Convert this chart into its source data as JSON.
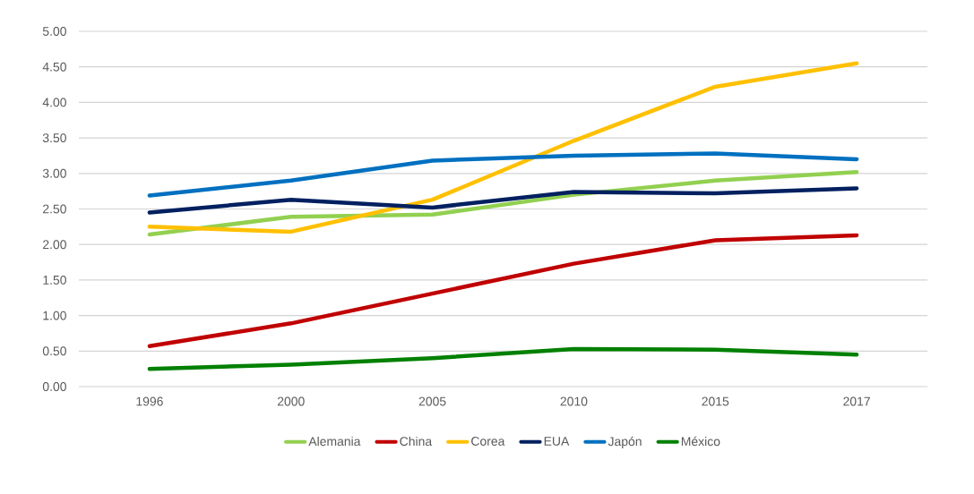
{
  "chart_data": {
    "type": "line",
    "categories": [
      "1996",
      "2000",
      "2005",
      "2010",
      "2015",
      "2017"
    ],
    "series": [
      {
        "name": "Alemania",
        "color": "#92d050",
        "values": [
          2.14,
          2.39,
          2.42,
          2.7,
          2.9,
          3.02
        ]
      },
      {
        "name": "China",
        "color": "#c00000",
        "values": [
          0.57,
          0.89,
          1.31,
          1.73,
          2.06,
          2.13
        ]
      },
      {
        "name": "Corea",
        "color": "#ffc000",
        "values": [
          2.25,
          2.18,
          2.63,
          3.46,
          4.22,
          4.55
        ]
      },
      {
        "name": "EUA",
        "color": "#002060",
        "values": [
          2.45,
          2.63,
          2.52,
          2.74,
          2.72,
          2.79
        ]
      },
      {
        "name": "Japón",
        "color": "#0070c0",
        "values": [
          2.69,
          2.9,
          3.18,
          3.25,
          3.28,
          3.2
        ]
      },
      {
        "name": "México",
        "color": "#008000",
        "values": [
          0.25,
          0.31,
          0.4,
          0.53,
          0.52,
          0.45
        ]
      }
    ],
    "ylim": [
      0,
      5
    ],
    "yticks": [
      {
        "value": 0,
        "label": "0.00"
      },
      {
        "value": 0.5,
        "label": "0.50"
      },
      {
        "value": 1,
        "label": "1.00"
      },
      {
        "value": 1.5,
        "label": "1.50"
      },
      {
        "value": 2,
        "label": "2.00"
      },
      {
        "value": 2.5,
        "label": "2.50"
      },
      {
        "value": 3,
        "label": "3.00"
      },
      {
        "value": 3.5,
        "label": "3.50"
      },
      {
        "value": 4,
        "label": "4.00"
      },
      {
        "value": 4.5,
        "label": "4.50"
      },
      {
        "value": 5,
        "label": "5.00"
      }
    ],
    "grid": "y",
    "legend": "bottom",
    "marker": "none",
    "line_style": "solid"
  }
}
